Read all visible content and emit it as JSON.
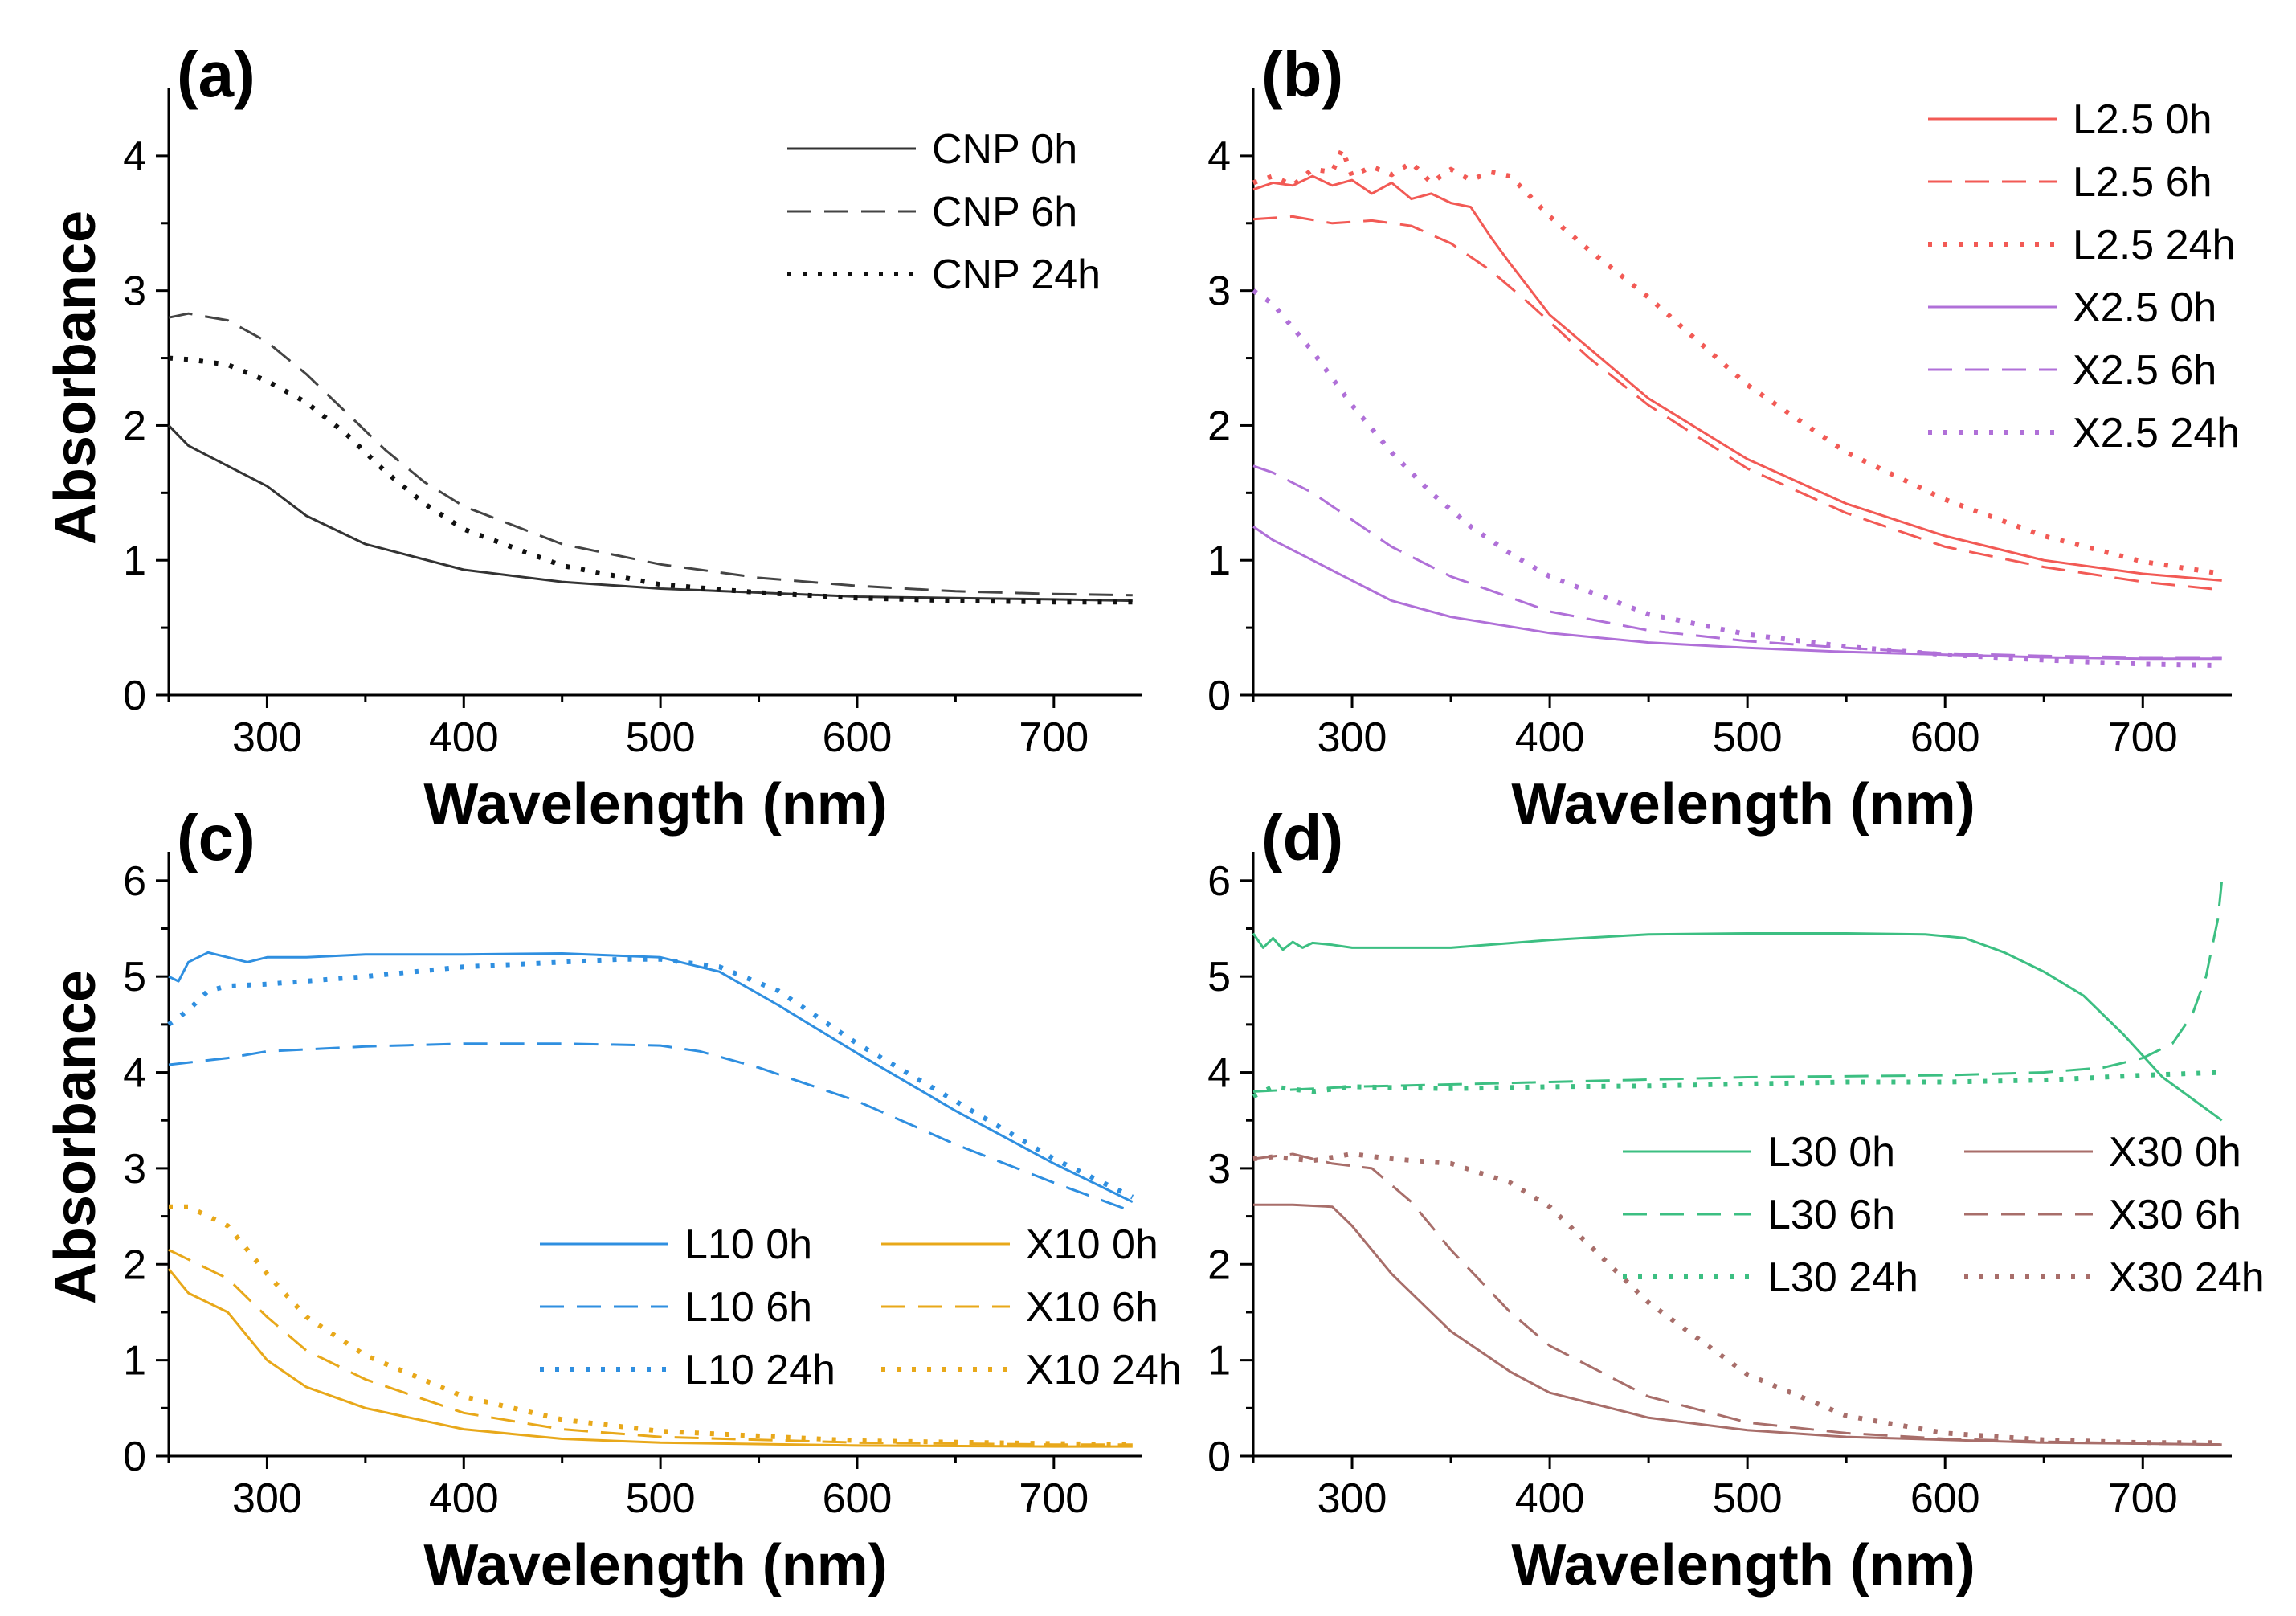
{
  "chart_data": [
    {
      "type": "line",
      "panel_label": "(a)",
      "xlabel": "Wavelength (nm)",
      "ylabel": "Absorbance",
      "xlim": [
        250,
        745
      ],
      "ylim": [
        0,
        4.5
      ],
      "xticks": [
        300,
        400,
        500,
        600,
        700
      ],
      "xtick_labels": [
        "300",
        "400",
        "500",
        "600",
        "700"
      ],
      "yticks": [
        0,
        1,
        2,
        3,
        4
      ],
      "ytick_labels": [
        "0",
        "1",
        "2",
        "3",
        "4"
      ],
      "legend_position": "top-right",
      "legend_columns": 1,
      "series": [
        {
          "name": "CNP 0h",
          "color": "#333333",
          "dash": "solid",
          "x": [
            250,
            260,
            280,
            300,
            320,
            350,
            400,
            450,
            500,
            550,
            600,
            650,
            700,
            740
          ],
          "y": [
            2.0,
            1.85,
            1.7,
            1.55,
            1.33,
            1.12,
            0.93,
            0.84,
            0.79,
            0.76,
            0.73,
            0.72,
            0.71,
            0.7
          ]
        },
        {
          "name": "CNP 6h",
          "color": "#444444",
          "dash": "dash",
          "x": [
            250,
            260,
            280,
            300,
            320,
            340,
            360,
            380,
            400,
            450,
            500,
            550,
            600,
            650,
            700,
            740
          ],
          "y": [
            2.8,
            2.83,
            2.78,
            2.62,
            2.38,
            2.1,
            1.82,
            1.58,
            1.4,
            1.12,
            0.97,
            0.87,
            0.81,
            0.77,
            0.75,
            0.74
          ]
        },
        {
          "name": "CNP 24h",
          "color": "#111111",
          "dash": "dot",
          "x": [
            250,
            260,
            280,
            300,
            320,
            340,
            360,
            380,
            400,
            450,
            500,
            550,
            600,
            650,
            700,
            740
          ],
          "y": [
            2.5,
            2.49,
            2.45,
            2.33,
            2.17,
            1.94,
            1.66,
            1.42,
            1.23,
            0.96,
            0.82,
            0.76,
            0.72,
            0.7,
            0.69,
            0.69
          ]
        }
      ]
    },
    {
      "type": "line",
      "panel_label": "(b)",
      "xlabel": "Wavelength (nm)",
      "ylabel": "",
      "xlim": [
        250,
        745
      ],
      "ylim": [
        0,
        4.5
      ],
      "xticks": [
        300,
        400,
        500,
        600,
        700
      ],
      "xtick_labels": [
        "300",
        "400",
        "500",
        "600",
        "700"
      ],
      "yticks": [
        0,
        1,
        2,
        3,
        4
      ],
      "ytick_labels": [
        "0",
        "1",
        "2",
        "3",
        "4"
      ],
      "legend_position": "top-right",
      "legend_columns": 1,
      "series": [
        {
          "name": "L2.5 0h",
          "color": "#f25a55",
          "dash": "solid",
          "x": [
            250,
            260,
            270,
            280,
            290,
            300,
            310,
            320,
            330,
            340,
            350,
            360,
            370,
            380,
            400,
            450,
            500,
            550,
            600,
            650,
            700,
            740
          ],
          "y": [
            3.75,
            3.8,
            3.78,
            3.85,
            3.78,
            3.82,
            3.72,
            3.8,
            3.68,
            3.72,
            3.65,
            3.62,
            3.4,
            3.2,
            2.82,
            2.2,
            1.75,
            1.42,
            1.18,
            1.0,
            0.9,
            0.85
          ]
        },
        {
          "name": "L2.5 6h",
          "color": "#f25a55",
          "dash": "dash",
          "x": [
            250,
            270,
            290,
            310,
            330,
            350,
            370,
            390,
            420,
            450,
            500,
            550,
            600,
            650,
            700,
            740
          ],
          "y": [
            3.53,
            3.55,
            3.5,
            3.52,
            3.48,
            3.35,
            3.15,
            2.9,
            2.5,
            2.15,
            1.68,
            1.35,
            1.1,
            0.95,
            0.84,
            0.78
          ]
        },
        {
          "name": "L2.5 24h",
          "color": "#f25a55",
          "dash": "dot",
          "x": [
            250,
            260,
            270,
            280,
            290,
            295,
            300,
            310,
            320,
            330,
            340,
            350,
            360,
            370,
            380,
            390,
            400,
            420,
            450,
            500,
            550,
            600,
            650,
            700,
            740
          ],
          "y": [
            3.8,
            3.85,
            3.78,
            3.9,
            3.88,
            4.05,
            3.85,
            3.92,
            3.86,
            3.95,
            3.8,
            3.9,
            3.82,
            3.88,
            3.85,
            3.7,
            3.55,
            3.3,
            2.95,
            2.3,
            1.8,
            1.45,
            1.18,
            0.99,
            0.9
          ]
        },
        {
          "name": "X2.5 0h",
          "color": "#b070d8",
          "dash": "solid",
          "x": [
            250,
            260,
            280,
            300,
            320,
            350,
            400,
            450,
            500,
            550,
            600,
            650,
            700,
            740
          ],
          "y": [
            1.25,
            1.15,
            1.0,
            0.85,
            0.7,
            0.58,
            0.46,
            0.39,
            0.35,
            0.32,
            0.3,
            0.28,
            0.27,
            0.27
          ]
        },
        {
          "name": "X2.5 6h",
          "color": "#b070d8",
          "dash": "dash",
          "x": [
            250,
            260,
            280,
            300,
            320,
            350,
            400,
            450,
            500,
            550,
            600,
            650,
            700,
            740
          ],
          "y": [
            1.7,
            1.65,
            1.5,
            1.3,
            1.1,
            0.88,
            0.62,
            0.48,
            0.4,
            0.35,
            0.31,
            0.29,
            0.28,
            0.28
          ]
        },
        {
          "name": "X2.5 24h",
          "color": "#b070d8",
          "dash": "dot",
          "x": [
            250,
            260,
            280,
            300,
            320,
            340,
            360,
            380,
            400,
            450,
            500,
            550,
            600,
            650,
            700,
            740
          ],
          "y": [
            3.0,
            2.9,
            2.55,
            2.15,
            1.8,
            1.5,
            1.25,
            1.05,
            0.88,
            0.6,
            0.45,
            0.36,
            0.3,
            0.26,
            0.23,
            0.22
          ]
        }
      ]
    },
    {
      "type": "line",
      "panel_label": "(c)",
      "xlabel": "Wavelength (nm)",
      "ylabel": "Absorbance",
      "xlim": [
        250,
        745
      ],
      "ylim": [
        0,
        6.3
      ],
      "xticks": [
        300,
        400,
        500,
        600,
        700
      ],
      "xtick_labels": [
        "300",
        "400",
        "500",
        "600",
        "700"
      ],
      "yticks": [
        0,
        1,
        2,
        3,
        4,
        5,
        6
      ],
      "ytick_labels": [
        "0",
        "1",
        "2",
        "3",
        "4",
        "5",
        "6"
      ],
      "legend_position": "bottom-right",
      "legend_columns": 2,
      "series": [
        {
          "name": "L10 0h",
          "color": "#2f8fe0",
          "dash": "solid",
          "x": [
            250,
            255,
            260,
            270,
            280,
            290,
            300,
            320,
            350,
            400,
            450,
            500,
            530,
            560,
            600,
            650,
            700,
            740
          ],
          "y": [
            5.0,
            4.95,
            5.15,
            5.25,
            5.2,
            5.15,
            5.2,
            5.2,
            5.23,
            5.23,
            5.24,
            5.2,
            5.05,
            4.7,
            4.2,
            3.6,
            3.05,
            2.65
          ]
        },
        {
          "name": "L10 6h",
          "color": "#2f8fe0",
          "dash": "dash",
          "x": [
            250,
            280,
            300,
            350,
            400,
            450,
            500,
            520,
            550,
            600,
            650,
            700,
            740
          ],
          "y": [
            4.08,
            4.15,
            4.22,
            4.27,
            4.3,
            4.3,
            4.28,
            4.22,
            4.05,
            3.7,
            3.25,
            2.85,
            2.55
          ]
        },
        {
          "name": "L10 24h",
          "color": "#2f8fe0",
          "dash": "dot",
          "x": [
            250,
            260,
            270,
            280,
            300,
            350,
            400,
            450,
            480,
            500,
            530,
            560,
            600,
            650,
            700,
            740
          ],
          "y": [
            4.5,
            4.65,
            4.85,
            4.9,
            4.92,
            5.0,
            5.1,
            5.15,
            5.18,
            5.18,
            5.1,
            4.85,
            4.3,
            3.7,
            3.1,
            2.7
          ]
        },
        {
          "name": "X10 0h",
          "color": "#e8a81a",
          "dash": "solid",
          "x": [
            250,
            260,
            270,
            280,
            290,
            300,
            320,
            350,
            400,
            450,
            500,
            600,
            700,
            740
          ],
          "y": [
            1.95,
            1.7,
            1.6,
            1.5,
            1.25,
            1.0,
            0.72,
            0.5,
            0.28,
            0.18,
            0.14,
            0.11,
            0.1,
            0.1
          ]
        },
        {
          "name": "X10 6h",
          "color": "#e8a81a",
          "dash": "dash",
          "x": [
            250,
            260,
            280,
            300,
            320,
            350,
            400,
            450,
            500,
            600,
            700,
            740
          ],
          "y": [
            2.15,
            2.05,
            1.85,
            1.45,
            1.1,
            0.8,
            0.45,
            0.28,
            0.2,
            0.14,
            0.12,
            0.12
          ]
        },
        {
          "name": "X10 24h",
          "color": "#e8a81a",
          "dash": "dot",
          "x": [
            250,
            260,
            280,
            300,
            320,
            350,
            400,
            450,
            500,
            600,
            700,
            740
          ],
          "y": [
            2.6,
            2.6,
            2.4,
            1.9,
            1.45,
            1.05,
            0.62,
            0.38,
            0.26,
            0.16,
            0.13,
            0.12
          ]
        }
      ]
    },
    {
      "type": "line",
      "panel_label": "(d)",
      "xlabel": "Wavelength (nm)",
      "ylabel": "",
      "xlim": [
        250,
        745
      ],
      "ylim": [
        0,
        6.3
      ],
      "xticks": [
        300,
        400,
        500,
        600,
        700
      ],
      "xtick_labels": [
        "300",
        "400",
        "500",
        "600",
        "700"
      ],
      "yticks": [
        0,
        1,
        2,
        3,
        4,
        5,
        6
      ],
      "ytick_labels": [
        "0",
        "1",
        "2",
        "3",
        "4",
        "5",
        "6"
      ],
      "legend_position": "middle-right",
      "legend_columns": 2,
      "series": [
        {
          "name": "L30 0h",
          "color": "#3cbf82",
          "dash": "solid",
          "x": [
            250,
            255,
            260,
            265,
            270,
            275,
            280,
            290,
            300,
            350,
            400,
            450,
            500,
            550,
            590,
            610,
            630,
            650,
            670,
            690,
            710,
            740
          ],
          "y": [
            5.45,
            5.3,
            5.4,
            5.28,
            5.36,
            5.3,
            5.35,
            5.33,
            5.3,
            5.3,
            5.38,
            5.44,
            5.45,
            5.45,
            5.44,
            5.4,
            5.25,
            5.05,
            4.8,
            4.4,
            3.95,
            3.5
          ]
        },
        {
          "name": "L30 6h",
          "color": "#3cbf82",
          "dash": "dash",
          "x": [
            250,
            300,
            400,
            500,
            600,
            650,
            680,
            700,
            715,
            725,
            732,
            738,
            740
          ],
          "y": [
            3.8,
            3.85,
            3.9,
            3.95,
            3.97,
            4.0,
            4.05,
            4.15,
            4.3,
            4.6,
            5.0,
            5.6,
            6.0
          ]
        },
        {
          "name": "L30 24h",
          "color": "#3cbf82",
          "dash": "dot",
          "x": [
            250,
            260,
            280,
            300,
            350,
            400,
            450,
            500,
            550,
            600,
            650,
            700,
            740
          ],
          "y": [
            3.75,
            3.85,
            3.8,
            3.85,
            3.83,
            3.85,
            3.86,
            3.88,
            3.9,
            3.9,
            3.92,
            3.97,
            4.0
          ]
        },
        {
          "name": "X30 0h",
          "color": "#a86e6a",
          "dash": "solid",
          "x": [
            250,
            270,
            290,
            300,
            320,
            350,
            380,
            400,
            450,
            500,
            550,
            600,
            650,
            700,
            740
          ],
          "y": [
            2.62,
            2.62,
            2.6,
            2.4,
            1.9,
            1.3,
            0.88,
            0.66,
            0.4,
            0.27,
            0.2,
            0.17,
            0.14,
            0.13,
            0.12
          ]
        },
        {
          "name": "X30 6h",
          "color": "#a86e6a",
          "dash": "dash",
          "x": [
            250,
            270,
            290,
            310,
            330,
            350,
            380,
            400,
            450,
            500,
            550,
            600,
            650,
            700,
            740
          ],
          "y": [
            3.1,
            3.15,
            3.05,
            3.0,
            2.65,
            2.15,
            1.5,
            1.15,
            0.62,
            0.35,
            0.24,
            0.18,
            0.15,
            0.13,
            0.12
          ]
        },
        {
          "name": "X30 24h",
          "color": "#a86e6a",
          "dash": "dot",
          "x": [
            250,
            260,
            280,
            300,
            320,
            350,
            380,
            400,
            420,
            450,
            500,
            550,
            600,
            650,
            700,
            740
          ],
          "y": [
            3.1,
            3.12,
            3.08,
            3.15,
            3.1,
            3.05,
            2.85,
            2.6,
            2.2,
            1.6,
            0.85,
            0.42,
            0.24,
            0.17,
            0.14,
            0.14
          ]
        }
      ]
    }
  ]
}
